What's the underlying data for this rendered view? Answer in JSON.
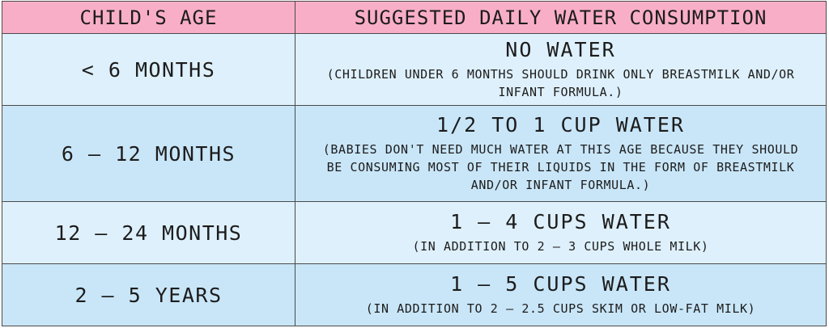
{
  "headers": {
    "age": "Child's Age",
    "consumption": "Suggested Daily Water Consumption"
  },
  "rows": [
    {
      "age": "< 6 Months",
      "amount": "No Water",
      "note": "(Children under 6 months should drink only breastmilk and/or infant formula.)"
    },
    {
      "age": "6 – 12 Months",
      "amount": "1/2 to 1 Cup Water",
      "note": "(Babies don't need much water at this age because they should be consuming most of their liquids in the form of breastmilk and/or infant formula.)"
    },
    {
      "age": "12 – 24 Months",
      "amount": "1 – 4 Cups Water",
      "note": "(In addition to 2 – 3 cups whole milk)"
    },
    {
      "age": "2 – 5 Years",
      "amount": "1 – 5 Cups Water",
      "note": "(In addition to 2 – 2.5 cups skim or low-fat milk)"
    }
  ],
  "colors": {
    "header_bg": "#f9aec8",
    "row_light": "#def0fb",
    "row_dark": "#c9e6f8",
    "border": "#4a4a4a"
  }
}
